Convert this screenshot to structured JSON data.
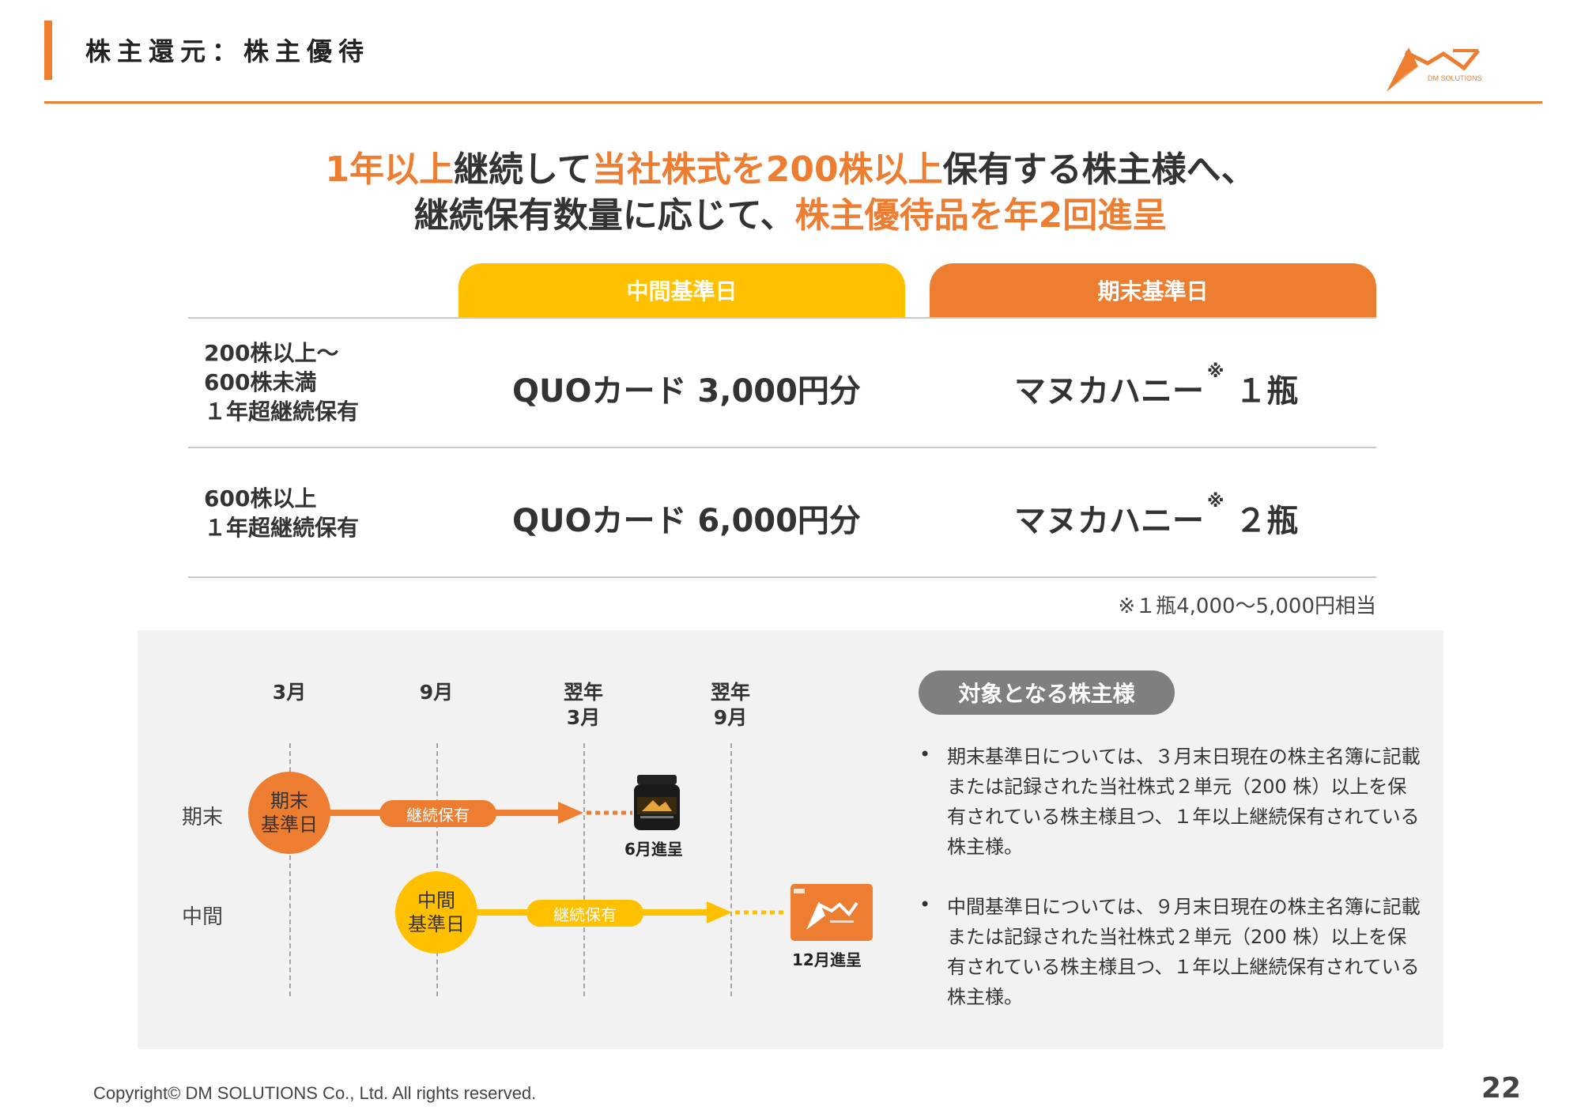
{
  "header": {
    "title": "株主還元：株主優待"
  },
  "logo": {
    "text": "DM SOLUTIONS"
  },
  "headline": {
    "line1": [
      {
        "text": "1年以上",
        "accent": true
      },
      {
        "text": "継続して",
        "accent": false
      },
      {
        "text": "当社株式を200株以上",
        "accent": true
      },
      {
        "text": "保有する株主様へ、",
        "accent": false
      }
    ],
    "line2": [
      {
        "text": "継続保有数量に応じて、",
        "accent": false
      },
      {
        "text": "株主優待品を年2回進呈",
        "accent": true
      }
    ]
  },
  "table": {
    "col_interim": "中間基準日",
    "col_yearend": "期末基準日",
    "rows": [
      {
        "label": "200株以上～\n600株未満\n１年超継続保有",
        "interim": "QUOカード  3,000円分",
        "yearend_item": "マヌカハニー",
        "yearend_mark": "※",
        "yearend_qty": " １瓶"
      },
      {
        "label": "600株以上\n１年超継続保有",
        "interim": "QUOカード  6,000円分",
        "yearend_item": "マヌカハニー",
        "yearend_mark": "※",
        "yearend_qty": " ２瓶"
      }
    ],
    "footnote": "※１瓶4,000～5,000円相当"
  },
  "timeline": {
    "months": [
      {
        "top": "",
        "bottom": "3月"
      },
      {
        "top": "",
        "bottom": "9月"
      },
      {
        "top": "翌年",
        "bottom": "3月"
      },
      {
        "top": "翌年",
        "bottom": "9月"
      }
    ],
    "rows": [
      {
        "name": "期末",
        "circle": "期末\n基準日",
        "pill": "継続保有",
        "delivery": "6月進呈"
      },
      {
        "name": "中間",
        "circle": "中間\n基準日",
        "pill": "継続保有",
        "delivery": "12月進呈"
      }
    ],
    "colors": {
      "orange": "#ED7D31",
      "yellow": "#FFC000"
    }
  },
  "eligibility": {
    "title": "対象となる株主様",
    "bullets": [
      "期末基準日については、３月末日現在の株主名簿に記載または記録された当社株式２単元（200 株）以上を保有されている株主様且つ、１年以上継続保有されている株主様。",
      "中間基準日については、９月末日現在の株主名簿に記載または記録された当社株式２単元（200 株）以上を保有されている株主様且つ、１年以上継続保有されている株主様。"
    ]
  },
  "footer": {
    "copyright": "Copyright© DM SOLUTIONS Co., Ltd. All rights reserved.",
    "page": "22"
  }
}
